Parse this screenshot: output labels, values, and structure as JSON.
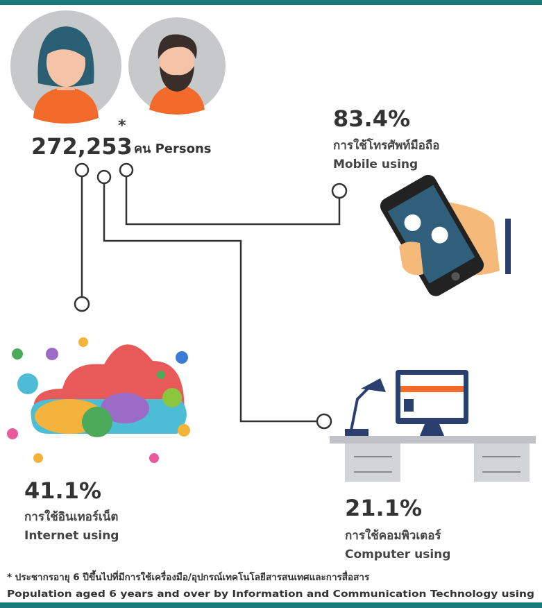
{
  "population": {
    "value": "272,253",
    "note_mark": "*",
    "unit": "คน Persons"
  },
  "mobile": {
    "percent": "83.4%",
    "label_th": "การใช้โทรศัพท์มือถือ",
    "label_en": "Mobile using"
  },
  "internet": {
    "percent": "41.1%",
    "label_th": "การใช้อินเทอร์เน็ต",
    "label_en": "Internet using"
  },
  "computer": {
    "percent": "21.1%",
    "label_th": "การใช้คอมพิวเตอร์",
    "label_en": "Computer using"
  },
  "footnote": {
    "line_th": "* ประชากรอายุ 6 ปีขึ้นไปที่มีการใช้เครื่องมือ/อุปกรณ์เทคโนโลยีสารสนเทศและการสื่อสาร",
    "line_en": "Population aged 6 years and over by Information and Communication Technology using"
  }
}
